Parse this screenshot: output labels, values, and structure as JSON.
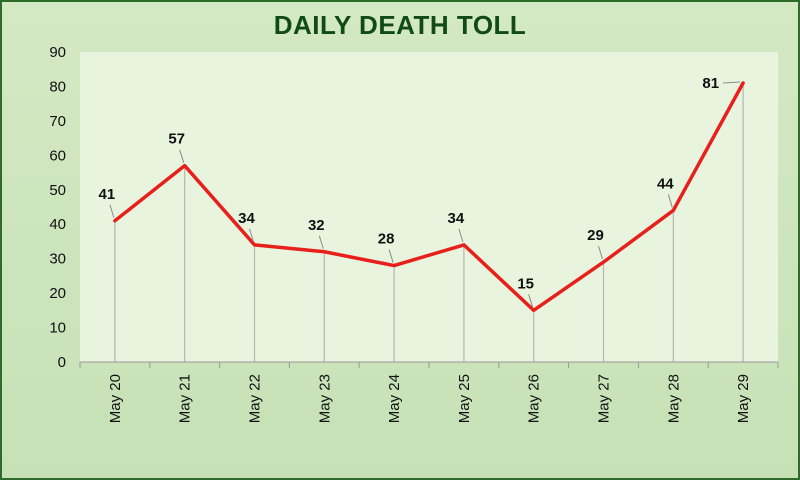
{
  "chart_data": {
    "type": "line",
    "title": "DAILY DEATH TOLL",
    "categories": [
      "May 20",
      "May 21",
      "May 22",
      "May 23",
      "May 24",
      "May 25",
      "May 26",
      "May 27",
      "May 28",
      "May 29"
    ],
    "values": [
      41,
      57,
      34,
      32,
      28,
      34,
      15,
      29,
      44,
      81
    ],
    "ylim": [
      0,
      90
    ],
    "yticks": [
      0,
      10,
      20,
      30,
      40,
      50,
      60,
      70,
      80,
      90
    ],
    "xlabel": "",
    "ylabel": "",
    "grid": false,
    "drop_lines": true,
    "data_labels": true,
    "line_color": "#e8201c",
    "plot_background": "#e9f4df",
    "title_color": "#124a14"
  }
}
